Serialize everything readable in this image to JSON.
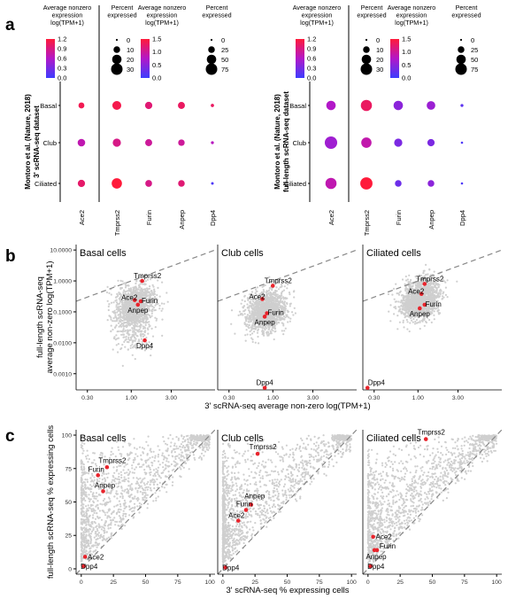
{
  "panel_labels": {
    "a": "a",
    "b": "b",
    "c": "c"
  },
  "legend": {
    "avg_title_lines": [
      "Average nonzero",
      "expression",
      "log(TPM+1)"
    ],
    "pct_title_lines": [
      "Percent",
      "expressed"
    ],
    "colors": {
      "low": "#3d3dff",
      "mid": "#b218c8",
      "high": "#ff1a3a"
    }
  },
  "chart_data": [
    {
      "type": "dot",
      "id": "a-left",
      "ylabel_lines": [
        "Montoro et al. (Nature, 2018)",
        "3' scRNA-seq dataset"
      ],
      "genes": [
        "Ace2",
        "Tmprss2",
        "Furin",
        "Anpep",
        "Dpp4"
      ],
      "cell_types": [
        "Basal",
        "Club",
        "Ciliated"
      ],
      "avg_expression_scale": {
        "ticks_ace2": [
          "1.2",
          "0.9",
          "0.6",
          "0.3",
          "0.0"
        ],
        "ticks_rest": [
          "1.5",
          "1.0",
          "0.5",
          "0.0"
        ]
      },
      "pct_scale": {
        "ticks_ace2": [
          "0",
          "10",
          "20",
          "30"
        ],
        "ticks_rest": [
          "0",
          "25",
          "50",
          "75"
        ]
      },
      "dots": [
        {
          "gene": "Ace2",
          "cell": "Basal",
          "pct": 8,
          "expr": 1.1
        },
        {
          "gene": "Ace2",
          "cell": "Club",
          "pct": 13,
          "expr": 0.7
        },
        {
          "gene": "Ace2",
          "cell": "Ciliated",
          "pct": 12,
          "expr": 1.0
        },
        {
          "gene": "Tmprss2",
          "cell": "Basal",
          "pct": 45,
          "expr": 1.4
        },
        {
          "gene": "Tmprss2",
          "cell": "Club",
          "pct": 38,
          "expr": 1.1
        },
        {
          "gene": "Tmprss2",
          "cell": "Ciliated",
          "pct": 60,
          "expr": 1.5
        },
        {
          "gene": "Furin",
          "cell": "Basal",
          "pct": 30,
          "expr": 1.2
        },
        {
          "gene": "Furin",
          "cell": "Club",
          "pct": 28,
          "expr": 1.0
        },
        {
          "gene": "Furin",
          "cell": "Ciliated",
          "pct": 26,
          "expr": 1.1
        },
        {
          "gene": "Anpep",
          "cell": "Basal",
          "pct": 28,
          "expr": 1.3
        },
        {
          "gene": "Anpep",
          "cell": "Club",
          "pct": 24,
          "expr": 1.0
        },
        {
          "gene": "Anpep",
          "cell": "Ciliated",
          "pct": 25,
          "expr": 1.2
        },
        {
          "gene": "Dpp4",
          "cell": "Basal",
          "pct": 6,
          "expr": 1.3
        },
        {
          "gene": "Dpp4",
          "cell": "Club",
          "pct": 5,
          "expr": 0.8
        },
        {
          "gene": "Dpp4",
          "cell": "Ciliated",
          "pct": 4,
          "expr": 0.1
        }
      ]
    },
    {
      "type": "dot",
      "id": "a-right",
      "ylabel_lines": [
        "Montoro et al. (Nature, 2018)",
        "full-length scRNA-seq dataset"
      ],
      "genes": [
        "Ace2",
        "Tmprss2",
        "Furin",
        "Anpep",
        "Dpp4"
      ],
      "cell_types": [
        "Basal",
        "Club",
        "Ciliated"
      ],
      "avg_expression_scale": {
        "ticks_ace2": [
          "1.2",
          "0.9",
          "0.6",
          "0.3",
          "0.0"
        ],
        "ticks_rest": [
          "1.5",
          "1.0",
          "0.5",
          "0.0"
        ]
      },
      "pct_scale": {
        "ticks_ace2": [
          "0",
          "10",
          "20",
          "30"
        ],
        "ticks_rest": [
          "0",
          "25",
          "50",
          "75"
        ]
      },
      "dots": [
        {
          "gene": "Ace2",
          "cell": "Basal",
          "pct": 20,
          "expr": 0.6
        },
        {
          "gene": "Ace2",
          "cell": "Club",
          "pct": 35,
          "expr": 0.5
        },
        {
          "gene": "Ace2",
          "cell": "Ciliated",
          "pct": 28,
          "expr": 0.7
        },
        {
          "gene": "Tmprss2",
          "cell": "Basal",
          "pct": 70,
          "expr": 1.3
        },
        {
          "gene": "Tmprss2",
          "cell": "Club",
          "pct": 60,
          "expr": 0.9
        },
        {
          "gene": "Tmprss2",
          "cell": "Ciliated",
          "pct": 85,
          "expr": 1.5
        },
        {
          "gene": "Furin",
          "cell": "Basal",
          "pct": 50,
          "expr": 0.5
        },
        {
          "gene": "Furin",
          "cell": "Club",
          "pct": 38,
          "expr": 0.4
        },
        {
          "gene": "Furin",
          "cell": "Ciliated",
          "pct": 25,
          "expr": 0.3
        },
        {
          "gene": "Anpep",
          "cell": "Basal",
          "pct": 42,
          "expr": 0.6
        },
        {
          "gene": "Anpep",
          "cell": "Club",
          "pct": 30,
          "expr": 0.4
        },
        {
          "gene": "Anpep",
          "cell": "Ciliated",
          "pct": 25,
          "expr": 0.5
        },
        {
          "gene": "Dpp4",
          "cell": "Basal",
          "pct": 5,
          "expr": 0.2
        },
        {
          "gene": "Dpp4",
          "cell": "Club",
          "pct": 3,
          "expr": 0.1
        },
        {
          "gene": "Dpp4",
          "cell": "Ciliated",
          "pct": 3,
          "expr": 0.1
        }
      ]
    },
    {
      "type": "scatter",
      "id": "b",
      "scale": "log",
      "xlabel": "3' scRNA-seq average non-zero log(TPM+1)",
      "ylabel_lines": [
        "full-length scRNA-seq",
        "average non-zero log(TPM+1)"
      ],
      "x_ticks": [
        "0.30",
        "1.00",
        "3.00"
      ],
      "y_ticks": [
        "10.0000",
        "1.0000",
        "0.1000",
        "0.0100",
        "0.0010"
      ],
      "xlim": [
        0.22,
        10
      ],
      "ylim": [
        0.0003,
        15
      ],
      "facets": [
        {
          "title": "Basal cells",
          "genes": [
            {
              "name": "Tmprss2",
              "x": 1.35,
              "y": 1.0
            },
            {
              "name": "Ace2",
              "x": 1.1,
              "y": 0.24
            },
            {
              "name": "Furin",
              "x": 1.3,
              "y": 0.22
            },
            {
              "name": "Anpep",
              "x": 1.2,
              "y": 0.17
            },
            {
              "name": "Dpp4",
              "x": 1.45,
              "y": 0.012
            }
          ]
        },
        {
          "title": "Club cells",
          "genes": [
            {
              "name": "Tmprss2",
              "x": 1.0,
              "y": 0.7
            },
            {
              "name": "Ace2",
              "x": 0.75,
              "y": 0.26
            },
            {
              "name": "Furin",
              "x": 0.85,
              "y": 0.09
            },
            {
              "name": "Anpep",
              "x": 0.8,
              "y": 0.07
            },
            {
              "name": "Dpp4",
              "x": 0.8,
              "y": 0.00035
            }
          ]
        },
        {
          "title": "Ciliated cells",
          "genes": [
            {
              "name": "Tmprss2",
              "x": 1.2,
              "y": 0.8
            },
            {
              "name": "Ace2",
              "x": 1.1,
              "y": 0.38
            },
            {
              "name": "Furin",
              "x": 1.2,
              "y": 0.17
            },
            {
              "name": "Anpep",
              "x": 1.05,
              "y": 0.13
            },
            {
              "name": "Dpp4",
              "x": 0.25,
              "y": 0.00035
            }
          ]
        }
      ]
    },
    {
      "type": "scatter",
      "id": "c",
      "scale": "linear",
      "xlabel": "3' scRNA-seq % expressing cells",
      "ylabel": "full-length scRNA-seq % expressing cells",
      "x_ticks": [
        "0",
        "25",
        "50",
        "75",
        "100"
      ],
      "y_ticks": [
        "0",
        "25",
        "50",
        "75",
        "100"
      ],
      "xlim": [
        -4,
        104
      ],
      "ylim": [
        -4,
        104
      ],
      "facets": [
        {
          "title": "Basal cells",
          "genes": [
            {
              "name": "Tmprss2",
              "x": 20,
              "y": 76
            },
            {
              "name": "Furin",
              "x": 13,
              "y": 70
            },
            {
              "name": "Anpep",
              "x": 17,
              "y": 58
            },
            {
              "name": "Ace2",
              "x": 3,
              "y": 9
            },
            {
              "name": "Dpp4",
              "x": 2,
              "y": 2
            }
          ]
        },
        {
          "title": "Club cells",
          "genes": [
            {
              "name": "Tmprss2",
              "x": 27,
              "y": 86
            },
            {
              "name": "Anpep",
              "x": 22,
              "y": 48
            },
            {
              "name": "Furin",
              "x": 18,
              "y": 44
            },
            {
              "name": "Ace2",
              "x": 12,
              "y": 36
            },
            {
              "name": "Dpp4",
              "x": 2,
              "y": 1
            }
          ]
        },
        {
          "title": "Ciliated cells",
          "genes": [
            {
              "name": "Tmprss2",
              "x": 45,
              "y": 97
            },
            {
              "name": "Ace2",
              "x": 4,
              "y": 24
            },
            {
              "name": "Furin",
              "x": 7,
              "y": 14
            },
            {
              "name": "Anpep",
              "x": 5,
              "y": 14
            },
            {
              "name": "Dpp4",
              "x": 2,
              "y": 2
            }
          ]
        }
      ]
    }
  ]
}
